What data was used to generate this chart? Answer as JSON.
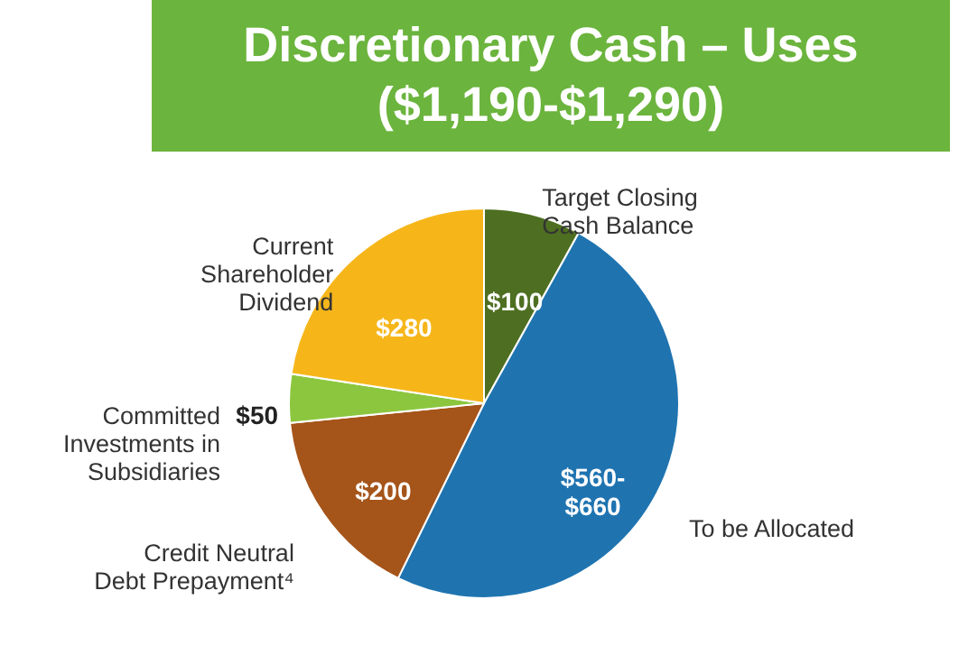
{
  "chart_data": {
    "type": "pie",
    "title": "Discretionary Cash – Uses",
    "subtitle": "($1,190-$1,290)",
    "categories": [
      "Target Closing Cash Balance",
      "To be Allocated",
      "Credit Neutral Debt Prepayment⁴",
      "Committed Investments in Subsidiaries",
      "Current Shareholder Dividend"
    ],
    "values": [
      100,
      610,
      200,
      50,
      280
    ],
    "value_labels": [
      "$100",
      "$560-$660",
      "$200",
      "$50",
      "$280"
    ],
    "colors": [
      "#4e6f21",
      "#1f74b0",
      "#a5541a",
      "#8cc63f",
      "#f6b61a"
    ]
  }
}
